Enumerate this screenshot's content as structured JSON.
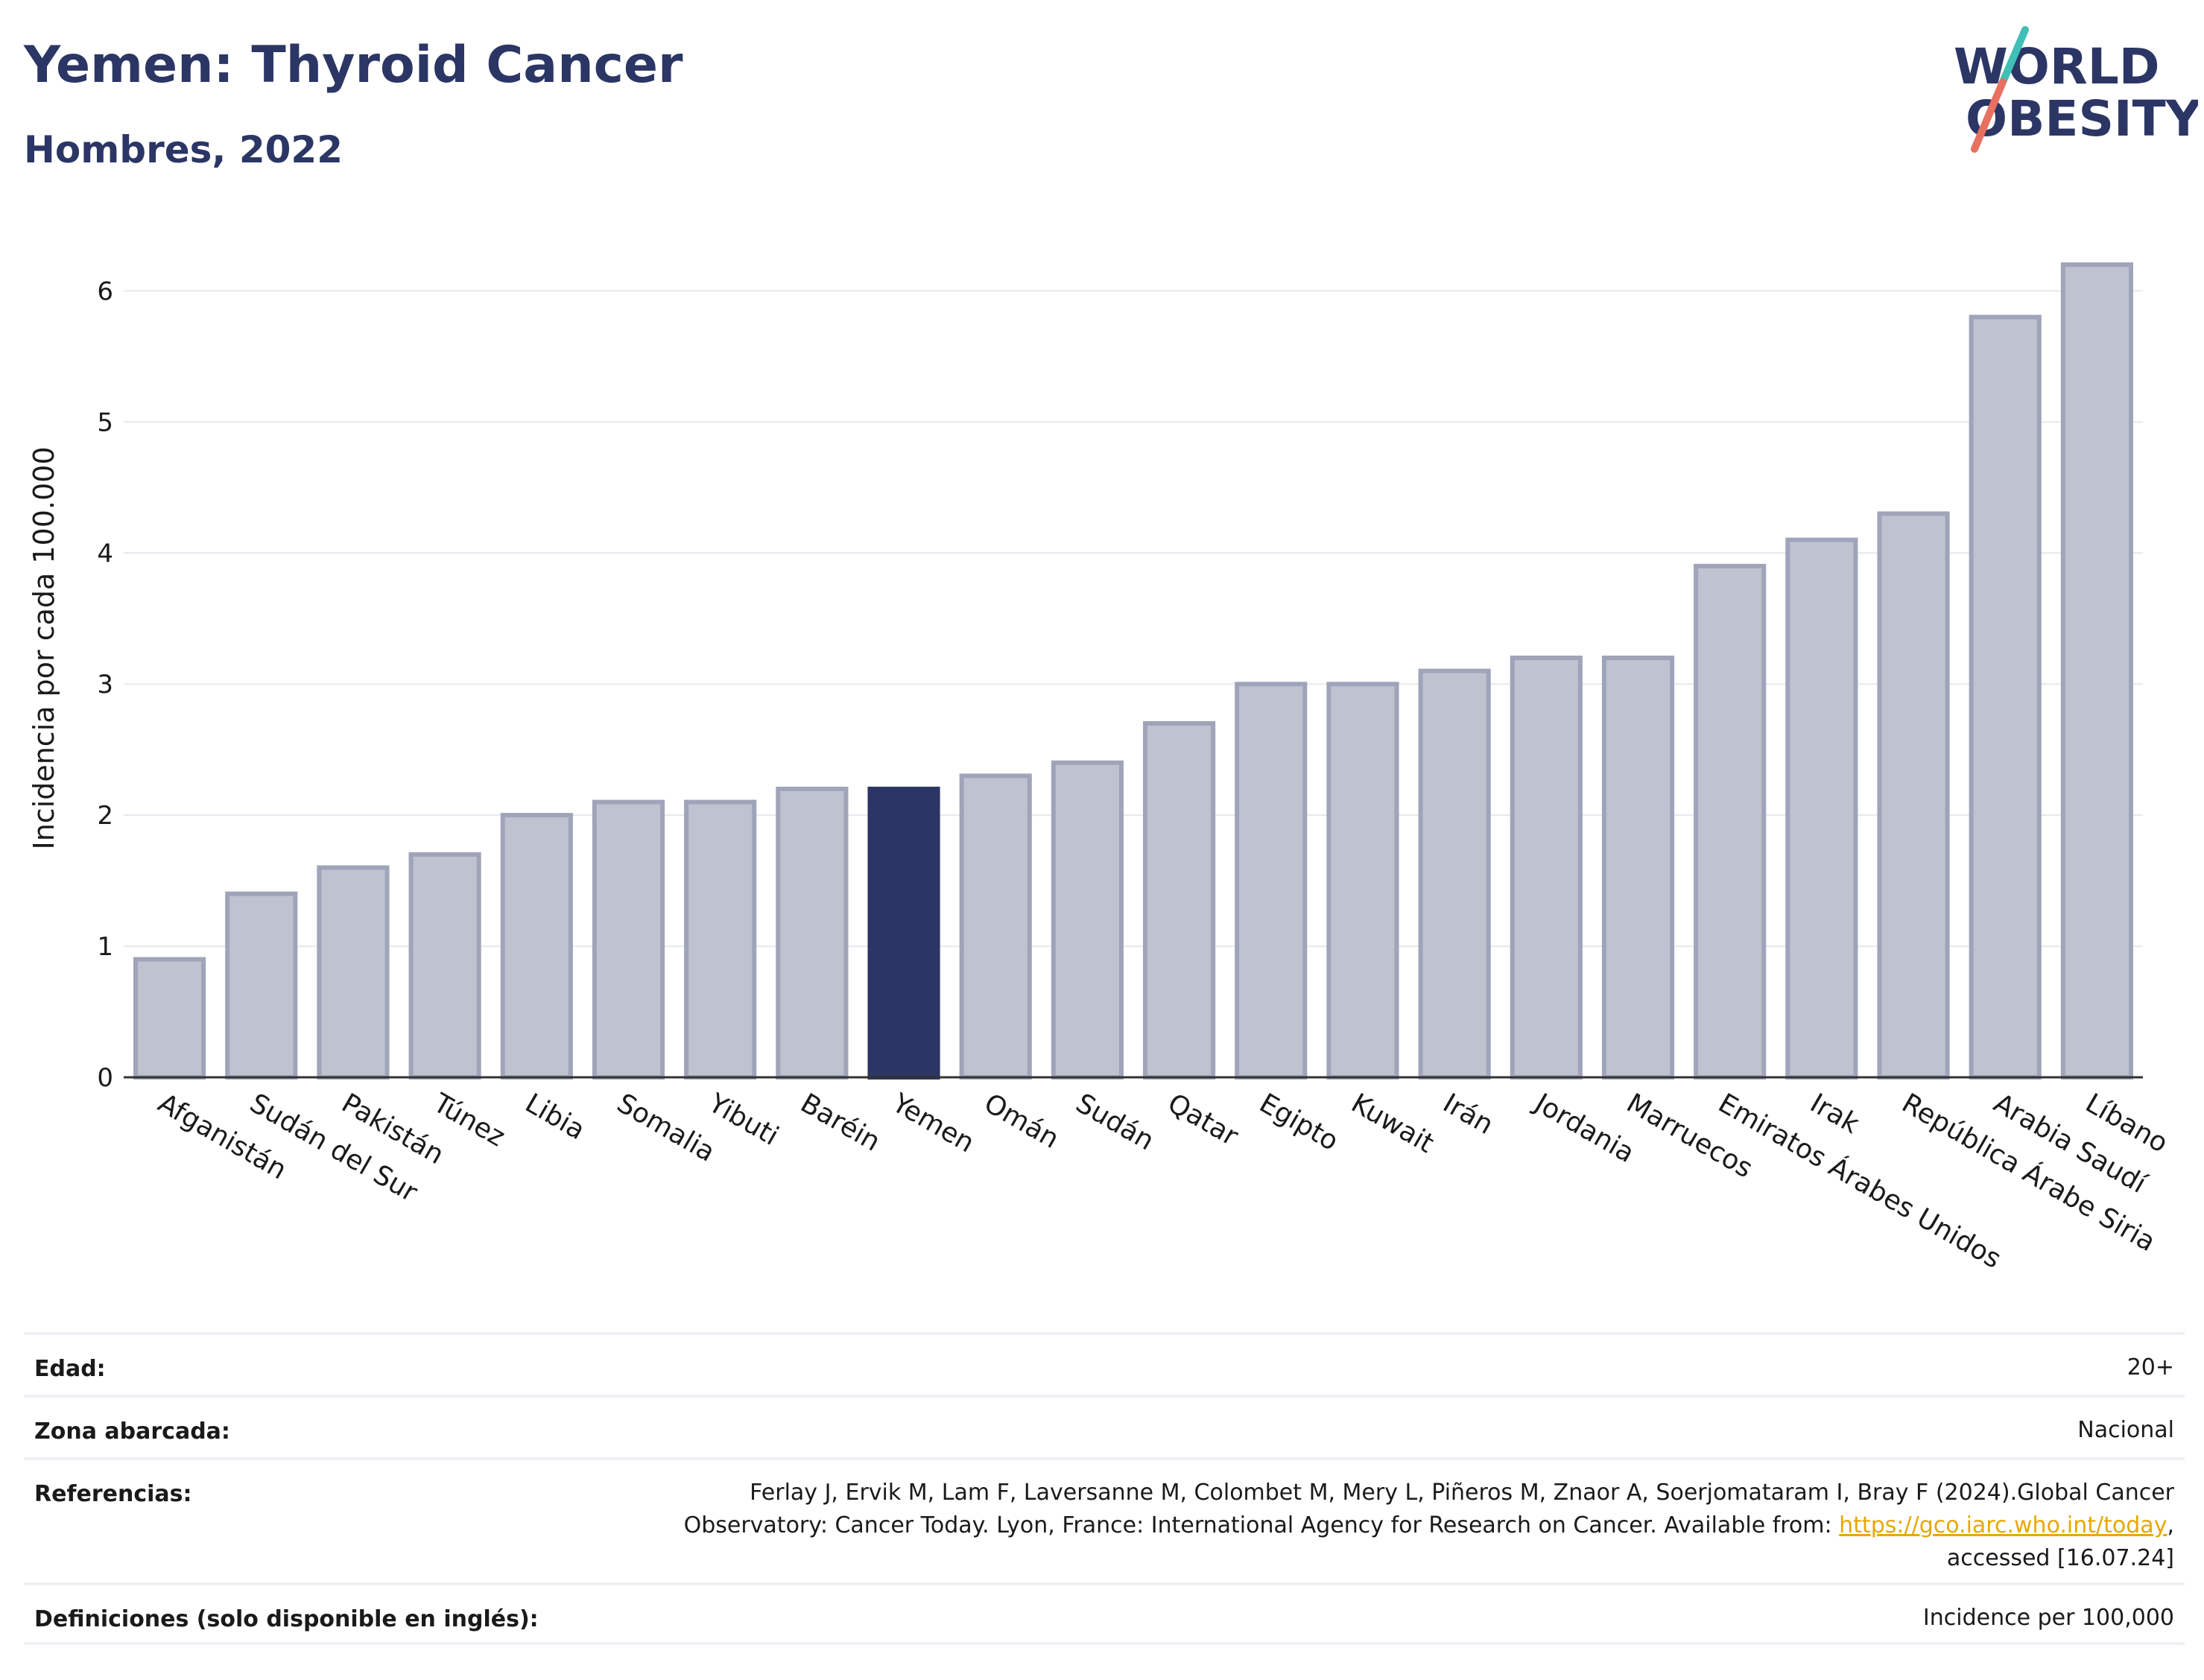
{
  "header": {
    "title": "Yemen: Thyroid Cancer",
    "subtitle": "Hombres, 2022"
  },
  "logo": {
    "line1": "WORLD",
    "line2": "OBESITY",
    "colors": {
      "text": "#2b3665",
      "slash_red": "#e8705f",
      "slash_teal": "#3fbfb5"
    }
  },
  "chart_data": {
    "type": "bar",
    "title": "Yemen: Thyroid Cancer",
    "subtitle": "Hombres, 2022",
    "ylabel": "Incidencia por cada 100.000",
    "xlabel": "",
    "ylim": [
      0,
      6.4
    ],
    "yticks": [
      0,
      1,
      2,
      3,
      4,
      5,
      6
    ],
    "grid": true,
    "highlight": "Yemen",
    "colors": {
      "bar": "#bfc2cf",
      "bar_border": "#9fa4ba",
      "highlight": "#2b3665",
      "grid": "#e6e8ee"
    },
    "categories": [
      "Afganistán",
      "Sudán del Sur",
      "Pakistán",
      "Túnez",
      "Libia",
      "Somalia",
      "Yibuti",
      "Baréin",
      "Yemen",
      "Omán",
      "Sudán",
      "Qatar",
      "Egipto",
      "Kuwait",
      "Irán",
      "Jordania",
      "Marruecos",
      "Emiratos Árabes Unidos",
      "Irak",
      "República Árabe Siria",
      "Arabia Saudí",
      "Líbano"
    ],
    "values": [
      0.9,
      1.4,
      1.6,
      1.7,
      2.0,
      2.1,
      2.1,
      2.2,
      2.2,
      2.3,
      2.4,
      2.7,
      3.0,
      3.0,
      3.1,
      3.2,
      3.2,
      3.9,
      4.1,
      4.3,
      5.8,
      6.2
    ]
  },
  "meta": {
    "rows": [
      {
        "label": "Edad:",
        "value": "20+"
      },
      {
        "label": "Zona abarcada:",
        "value": "Nacional"
      },
      {
        "label": "Referencias:",
        "value_pre": "Ferlay J, Ervik M, Lam F, Laversanne M, Colombet M, Mery L, Piñeros M, Znaor A, Soerjomataram I, Bray F (2024).Global Cancer Observatory: Cancer Today. Lyon, France: International Agency for Research on Cancer. Available from: ",
        "link": "https://gco.iarc.who.int/today",
        "value_post": ", accessed [16.07.24]"
      },
      {
        "label": "Definiciones (solo disponible en inglés):",
        "value": "Incidence per 100,000"
      }
    ]
  }
}
